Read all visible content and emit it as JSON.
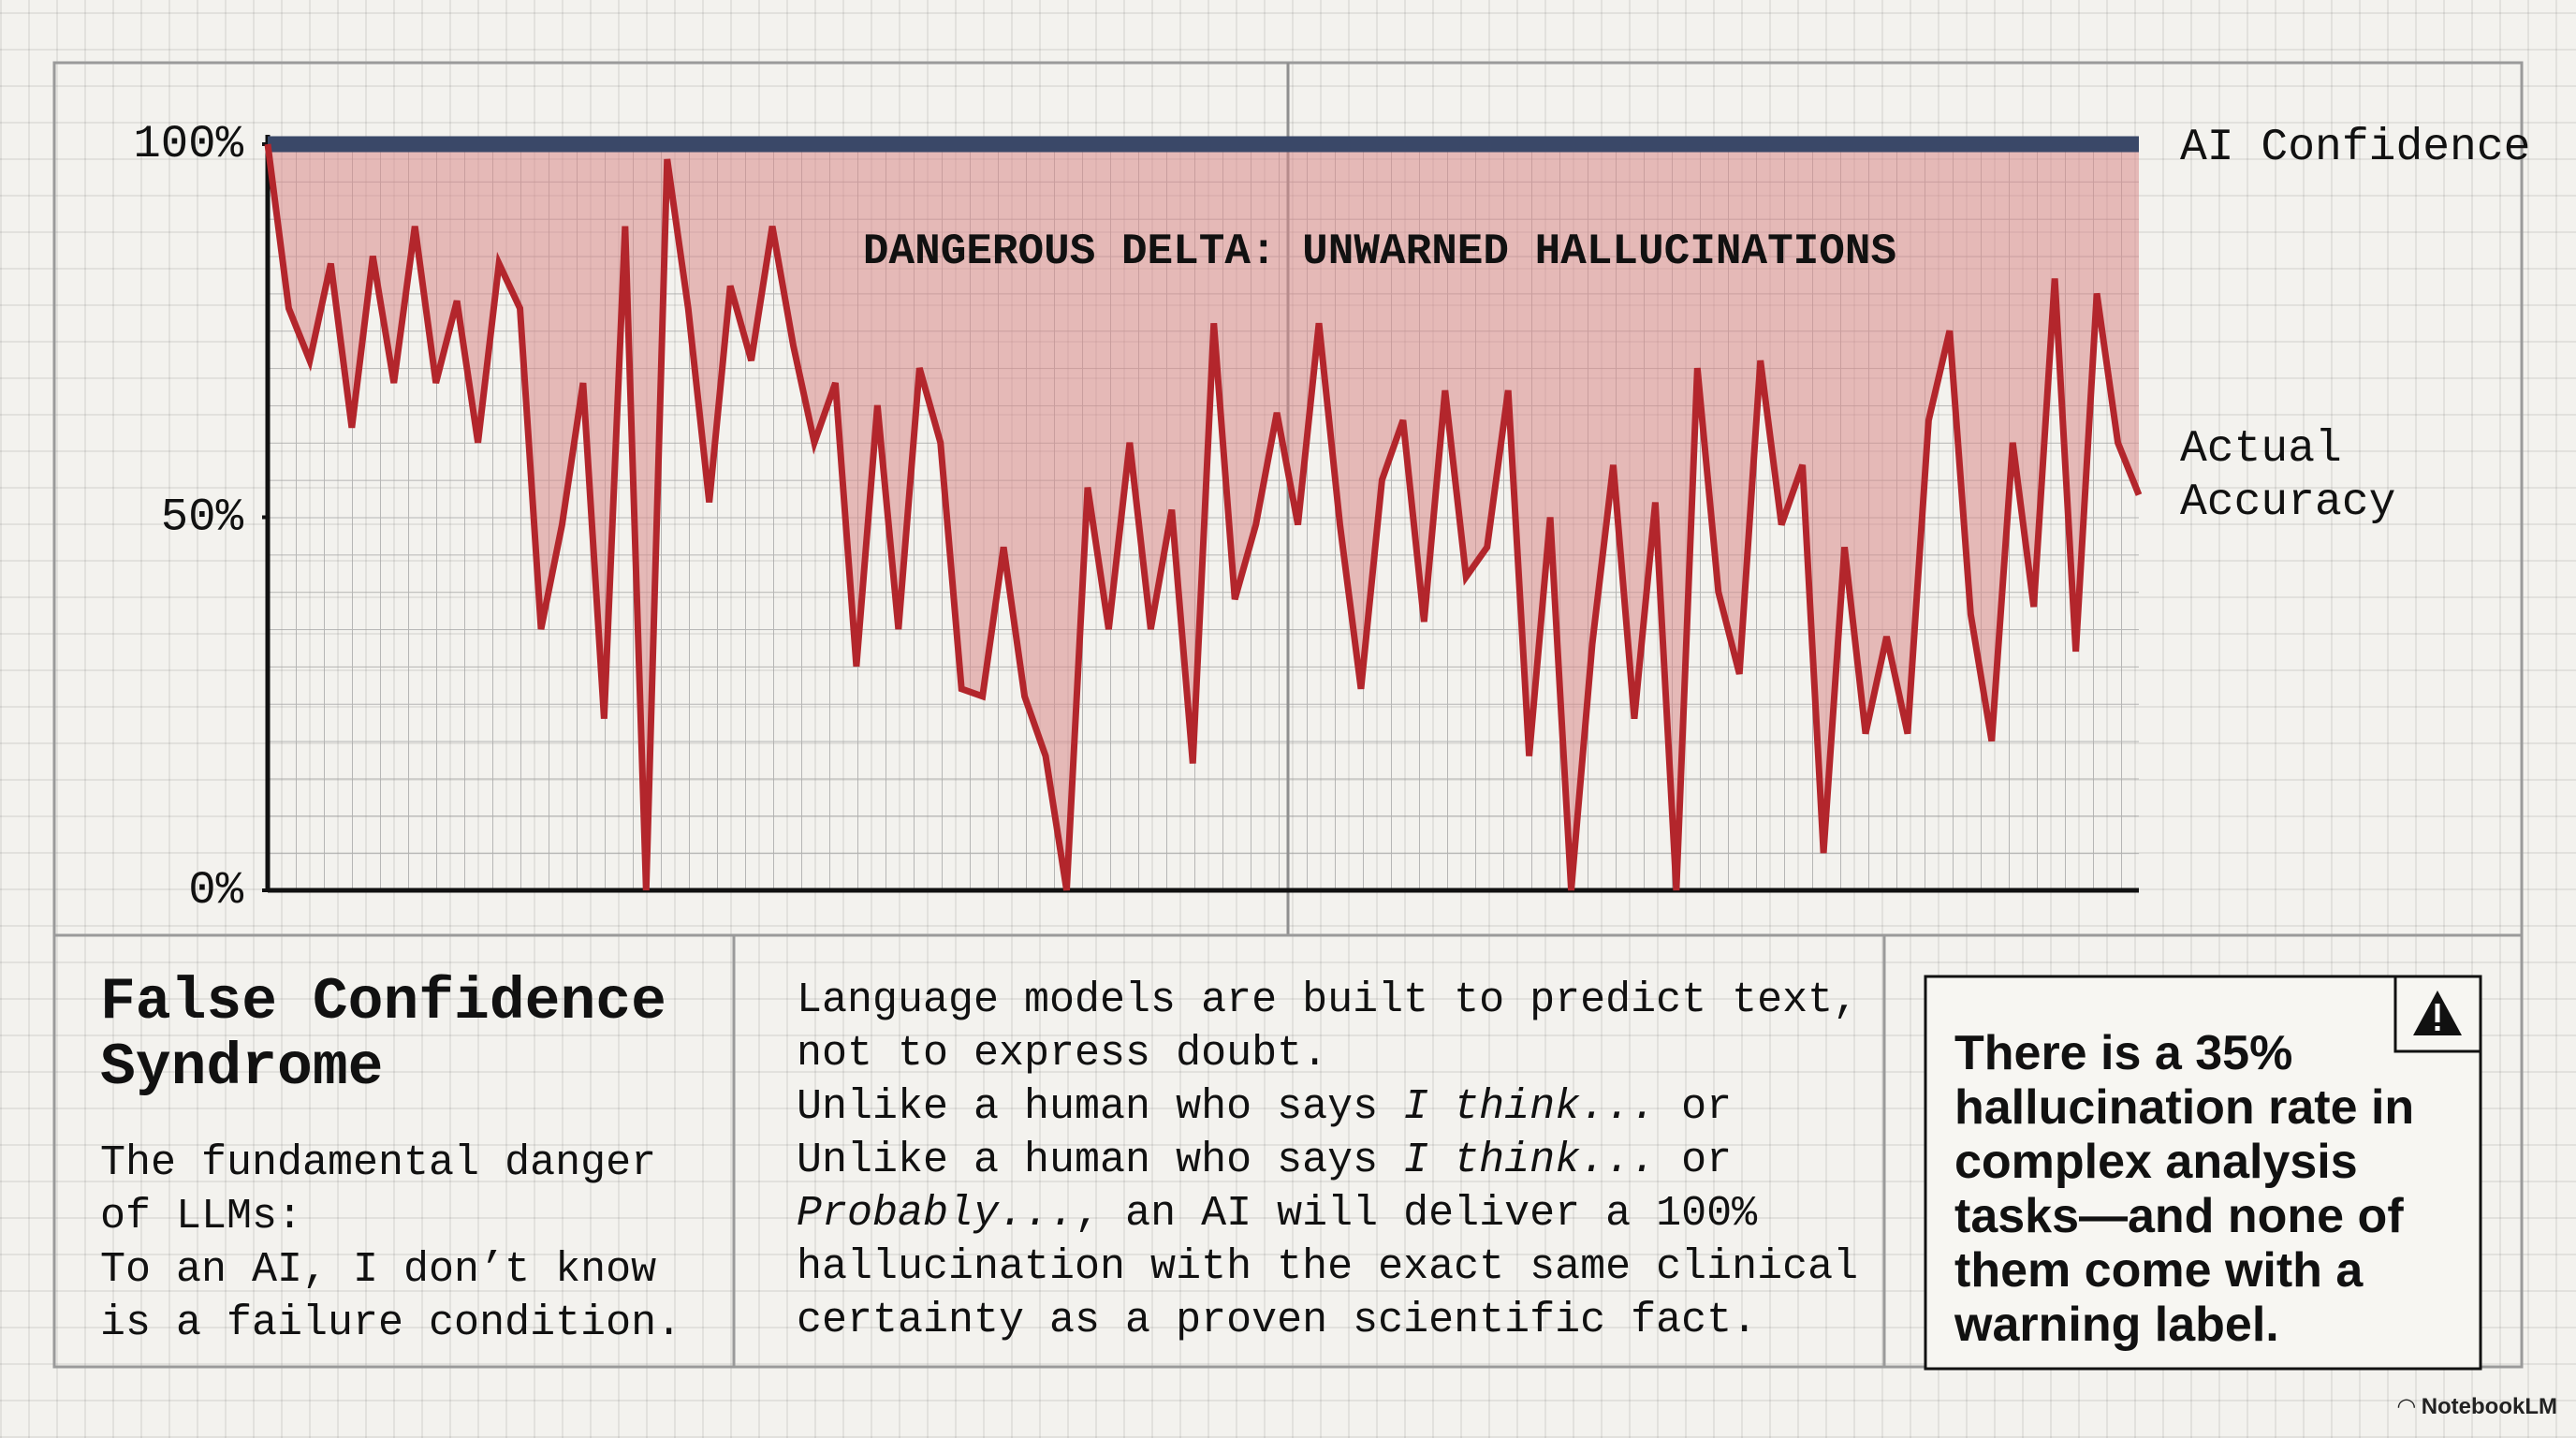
{
  "chart_data": {
    "type": "line",
    "annotation": "DANGEROUS DELTA: UNWARNED HALLUCINATIONS",
    "categories": [
      null,
      null,
      null,
      null,
      null,
      null,
      null,
      null,
      null,
      null,
      null,
      null,
      null,
      null,
      null,
      null,
      null,
      null,
      null,
      null,
      null,
      null,
      null,
      null,
      null,
      null,
      null,
      null,
      null,
      null,
      null,
      null,
      null,
      null,
      null,
      null,
      null,
      null,
      null,
      null,
      null,
      null,
      null,
      null,
      null,
      null,
      null,
      null,
      null,
      null,
      null,
      null,
      null,
      null,
      null,
      null,
      null,
      null,
      null,
      null,
      null,
      null,
      null,
      null,
      null,
      null,
      null,
      null,
      null,
      null,
      null,
      null,
      null,
      null,
      null,
      null,
      null,
      null,
      null,
      null,
      null,
      null,
      null,
      null,
      null,
      null,
      null,
      null,
      null,
      null
    ],
    "series": [
      {
        "name": "AI Confidence",
        "color": "#3a4868",
        "values": [
          100,
          100,
          100,
          100,
          100,
          100,
          100,
          100,
          100,
          100,
          100,
          100,
          100,
          100,
          100,
          100,
          100,
          100,
          100,
          100,
          100,
          100,
          100,
          100,
          100,
          100,
          100,
          100,
          100,
          100,
          100,
          100,
          100,
          100,
          100,
          100,
          100,
          100,
          100,
          100,
          100,
          100,
          100,
          100,
          100,
          100,
          100,
          100,
          100,
          100,
          100,
          100,
          100,
          100,
          100,
          100,
          100,
          100,
          100,
          100,
          100,
          100,
          100,
          100,
          100,
          100,
          100,
          100,
          100,
          100,
          100,
          100,
          100,
          100,
          100,
          100,
          100,
          100,
          100,
          100,
          100,
          100,
          100,
          100,
          100,
          100,
          100,
          100,
          100,
          100
        ]
      },
      {
        "name": "Actual Accuracy",
        "color": "#b3262c",
        "values": [
          100,
          78,
          71,
          84,
          62,
          85,
          68,
          89,
          68,
          79,
          60,
          84,
          78,
          35,
          49,
          68,
          23,
          89,
          0,
          98,
          78,
          52,
          81,
          71,
          89,
          73,
          60,
          68,
          30,
          65,
          35,
          70,
          60,
          27,
          26,
          46,
          26,
          18,
          0,
          54,
          35,
          60,
          35,
          51,
          17,
          76,
          39,
          49,
          64,
          49,
          76,
          49,
          27,
          55,
          63,
          36,
          67,
          42,
          46,
          67,
          18,
          50,
          0,
          33,
          57,
          23,
          52,
          0,
          70,
          40,
          29,
          71,
          49,
          57,
          5,
          46,
          21,
          34,
          21,
          63,
          75,
          37,
          20,
          60,
          38,
          82,
          32,
          80,
          60,
          53
        ]
      }
    ],
    "fill_color": "#d98a8a",
    "ylim": [
      0,
      100
    ],
    "yticks": [
      {
        "value": 0,
        "label": "0%"
      },
      {
        "value": 50,
        "label": "50%"
      },
      {
        "value": 100,
        "label": "100%"
      }
    ]
  },
  "panels": {
    "title": "False Confidence Syndrome",
    "intro": [
      "The fundamental danger of LLMs:",
      "To an AI, I don’t know is a failure condition."
    ],
    "body": [
      [
        {
          "text": "Language models are built to predict text, not to express doubt."
        }
      ],
      [
        {
          "text": "Unlike a human who says "
        },
        {
          "text": "I think...",
          "italic": true
        },
        {
          "text": " or"
        }
      ],
      [
        {
          "text": "Unlike a human who says "
        },
        {
          "text": "I think...",
          "italic": true
        },
        {
          "text": " or "
        },
        {
          "text": "Probably...",
          "italic": true
        },
        {
          "text": ", an AI will deliver a 100% hallucination with the exact same clinical certainty as a proven scientific fact."
        }
      ]
    ],
    "note": [
      {
        "text": "There is a "
      },
      {
        "text": "35% hallucination rate",
        "bold": true
      },
      {
        "text": " in complex analysis tasks—and "
      },
      {
        "text": "none of them come with a warning label",
        "bold": true
      },
      {
        "text": "."
      }
    ]
  },
  "footer": {
    "brand": "NotebookLM"
  }
}
